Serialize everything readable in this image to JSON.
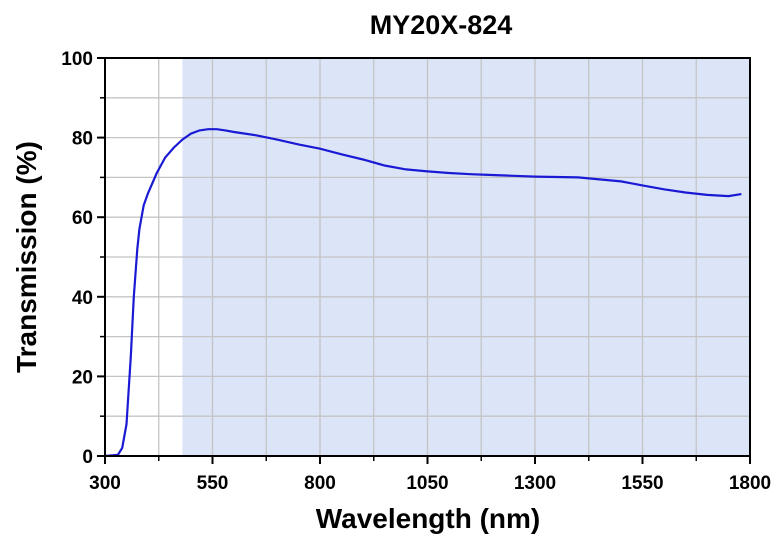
{
  "chart_data": {
    "type": "line",
    "title": "MY20X-824",
    "xlabel": "Wavelength (nm)",
    "ylabel": "Transmission (%)",
    "xlim": [
      300,
      1800
    ],
    "ylim": [
      0,
      100
    ],
    "xticks": [
      300,
      550,
      800,
      1050,
      1300,
      1550,
      1800
    ],
    "yticks": [
      0,
      20,
      40,
      60,
      80,
      100
    ],
    "grid": true,
    "highlight_band": {
      "x_start": 480,
      "x_end": 1800,
      "color": "#dce5f8"
    },
    "series": [
      {
        "color": "#1a1ad4",
        "x": [
          300,
          330,
          340,
          350,
          360,
          367,
          375,
          380,
          390,
          400,
          420,
          440,
          460,
          480,
          500,
          520,
          540,
          560,
          580,
          600,
          650,
          700,
          750,
          800,
          850,
          900,
          950,
          1000,
          1050,
          1100,
          1150,
          1200,
          1250,
          1300,
          1350,
          1400,
          1450,
          1500,
          1550,
          1600,
          1650,
          1700,
          1750,
          1780
        ],
        "y": [
          0,
          0.3,
          2,
          8,
          25,
          40,
          52,
          57,
          63,
          66,
          71,
          75,
          77.5,
          79.5,
          81,
          81.8,
          82.1,
          82.1,
          81.8,
          81.4,
          80.6,
          79.5,
          78.3,
          77.2,
          75.8,
          74.5,
          73,
          72,
          71.5,
          71.1,
          70.8,
          70.6,
          70.4,
          70.2,
          70.1,
          70,
          69.5,
          69,
          68,
          67,
          66.2,
          65.6,
          65.3,
          65.8
        ]
      }
    ]
  }
}
